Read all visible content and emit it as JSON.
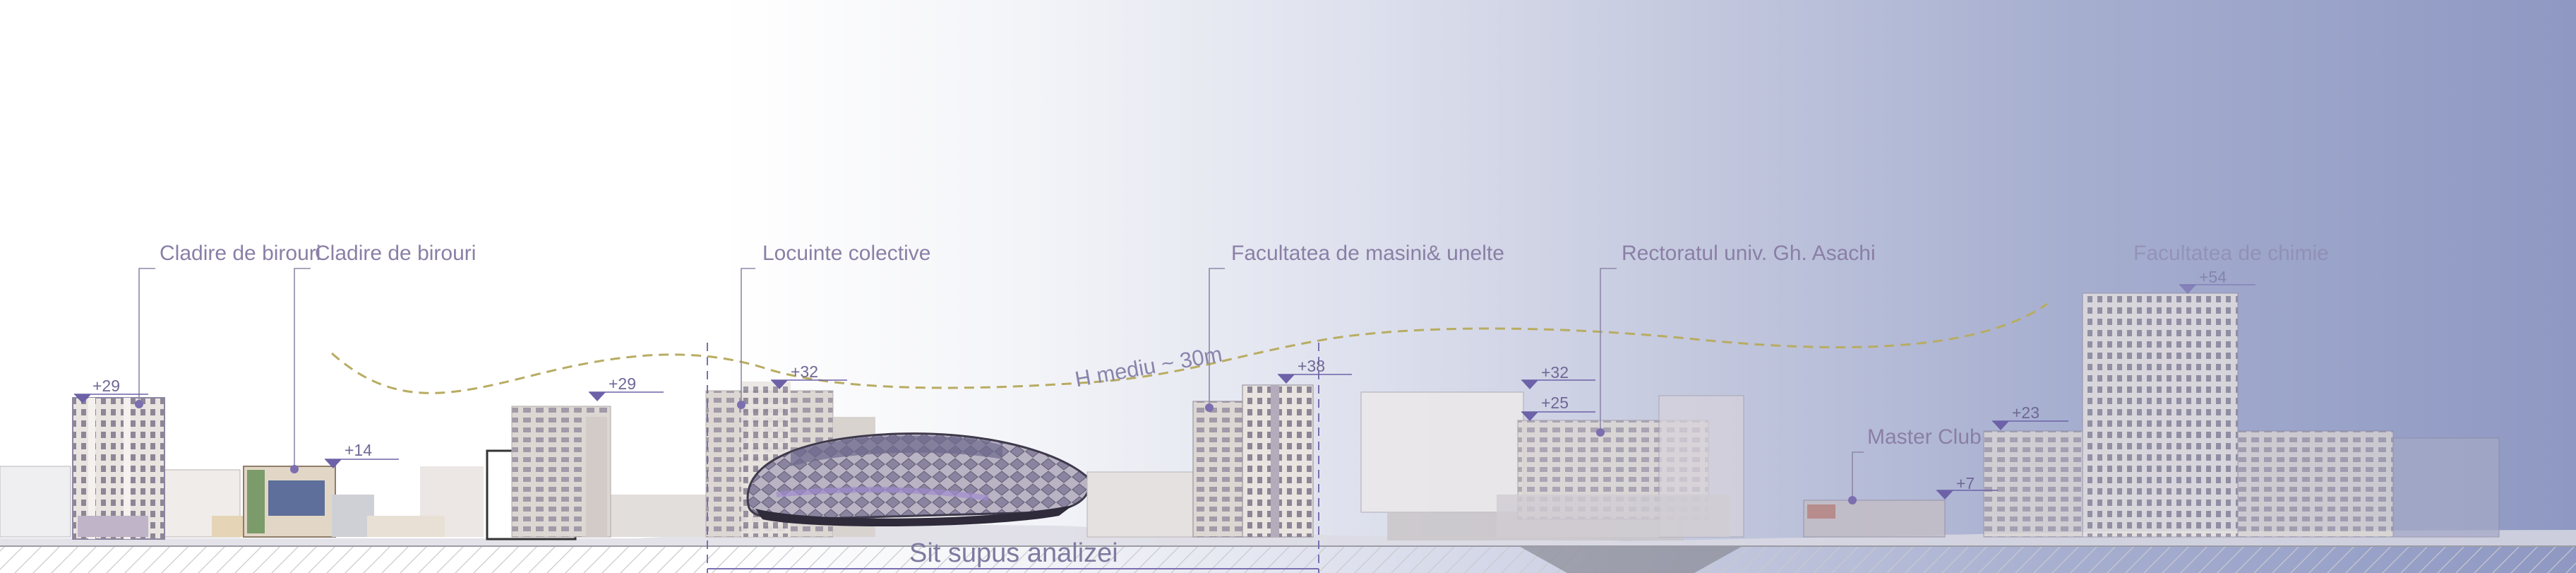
{
  "labels": {
    "cladire_birouri_1": "Cladire de birouri",
    "cladire_birouri_2": "Cladire de birouri",
    "locuinte_colective": "Locuinte colective",
    "facultatea_masini": "Facultatea de masini& unelte",
    "rectoratul": "Rectoratul univ. Gh. Asachi",
    "facultatea_chimie": "Facultatea de chimie",
    "master_club": "Master Club",
    "h_mediu": "H mediu ~ 30m",
    "sit": "Sit supus analizei"
  },
  "elevations": {
    "e1": "+29",
    "e2": "+14",
    "e3": "+29",
    "e4": "+32",
    "e5": "+38",
    "e6": "+32",
    "e7": "+25",
    "e8": "+23",
    "e9": "+7",
    "e10": "+54"
  },
  "colors": {
    "accent": "#7b6fb0",
    "label": "#8a7fa6",
    "dashed_curve": "#b8ac62",
    "gradient_end": "#8e98c2"
  }
}
